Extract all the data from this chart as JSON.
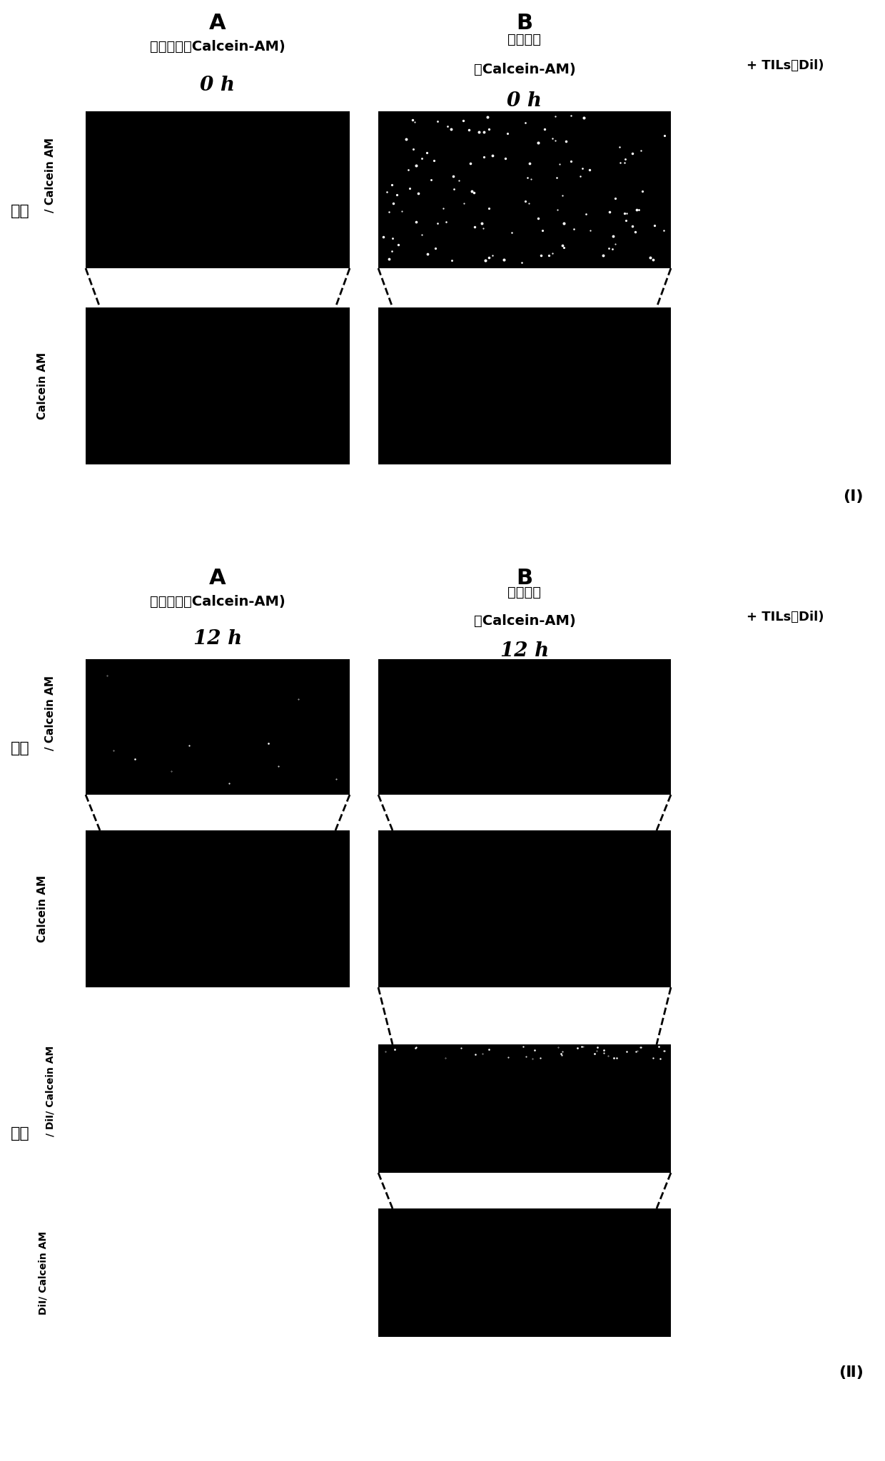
{
  "bg_color": "#ffffff",
  "figsize": [
    12.4,
    20.48
  ],
  "dpi": 100,
  "panel_I": {
    "label": "(Ⅰ)",
    "col_A_label": "A",
    "col_B_label": "B",
    "A_line1": "黑色素瘤（Calcein-AM)",
    "A_line2": "0 h",
    "B_line1": "黑色素瘤",
    "B_line2": "（Calcein-AM)",
    "B_line3": "0 h",
    "tils": "+ TILs（Dil)",
    "row1_ylabel_en": "/ Calcein AM",
    "row1_ylabel_cn": "明场",
    "row2_ylabel": "Calcein AM"
  },
  "panel_II": {
    "label": "(Ⅱ)",
    "col_A_label": "A",
    "col_B_label": "B",
    "A_line1": "黑色素瘤（Calcein-AM)",
    "A_line2": "12 h",
    "B_line1": "黑色素瘤",
    "B_line2": "（Calcein-AM)",
    "B_line3": "12 h",
    "tils": "+ TILs（Dil)",
    "row1_ylabel_en": "/ Calcein AM",
    "row1_ylabel_cn": "明场",
    "row2_ylabel": "Calcein AM",
    "row3_ylabel_en": "/ DiI/ Calcein AM",
    "row3_ylabel_cn": "明场",
    "row4_ylabel": "DiI/ Calcein AM"
  }
}
